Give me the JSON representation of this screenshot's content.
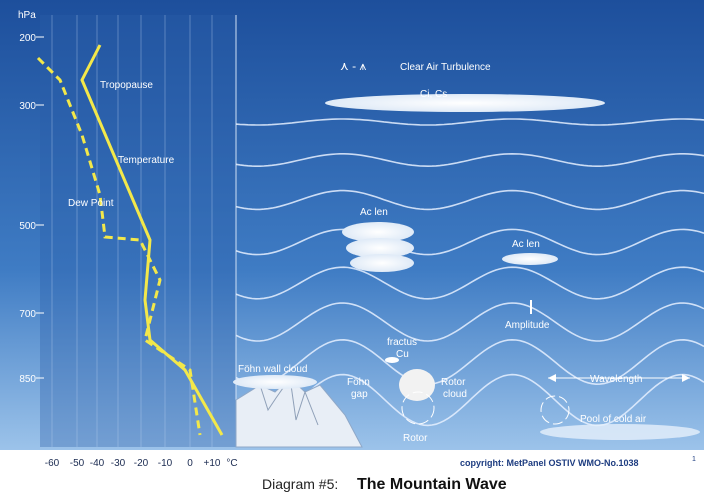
{
  "sounding": {
    "pressure_unit": "hPa",
    "pressure_labels": [
      "200",
      "300",
      "500",
      "700",
      "850"
    ],
    "temperature_labels": [
      "-60",
      "-50",
      "-40",
      "-30",
      "-20",
      "-10",
      "0",
      "+10"
    ],
    "temperature_unit": "°C",
    "labels": {
      "tropopause": "Tropopause",
      "temperature": "Temperature",
      "dew_point": "Dew Point"
    }
  },
  "wave": {
    "turbulence": "Clear Air Turbulence",
    "cirrus": "Ci, Cs",
    "ac_len_1": "Ac len",
    "ac_len_2": "Ac len",
    "amplitude": "Amplitude",
    "wavelength": "Wavelength",
    "foehn_wall_cloud": "Föhn wall cloud",
    "foehn_gap": [
      "Föhn",
      "gap"
    ],
    "fractus": [
      "fractus",
      "Cu"
    ],
    "rotor_cloud": [
      "Rotor",
      "cloud"
    ],
    "rotor": "Rotor",
    "pool": "Pool of cold air"
  },
  "footer": {
    "copyright": "copyright: MetPanel OSTIV WMO-No.1038",
    "footnote": "1",
    "caption_prefix": "Diagram #5:",
    "caption_title": "The Mountain Wave"
  }
}
